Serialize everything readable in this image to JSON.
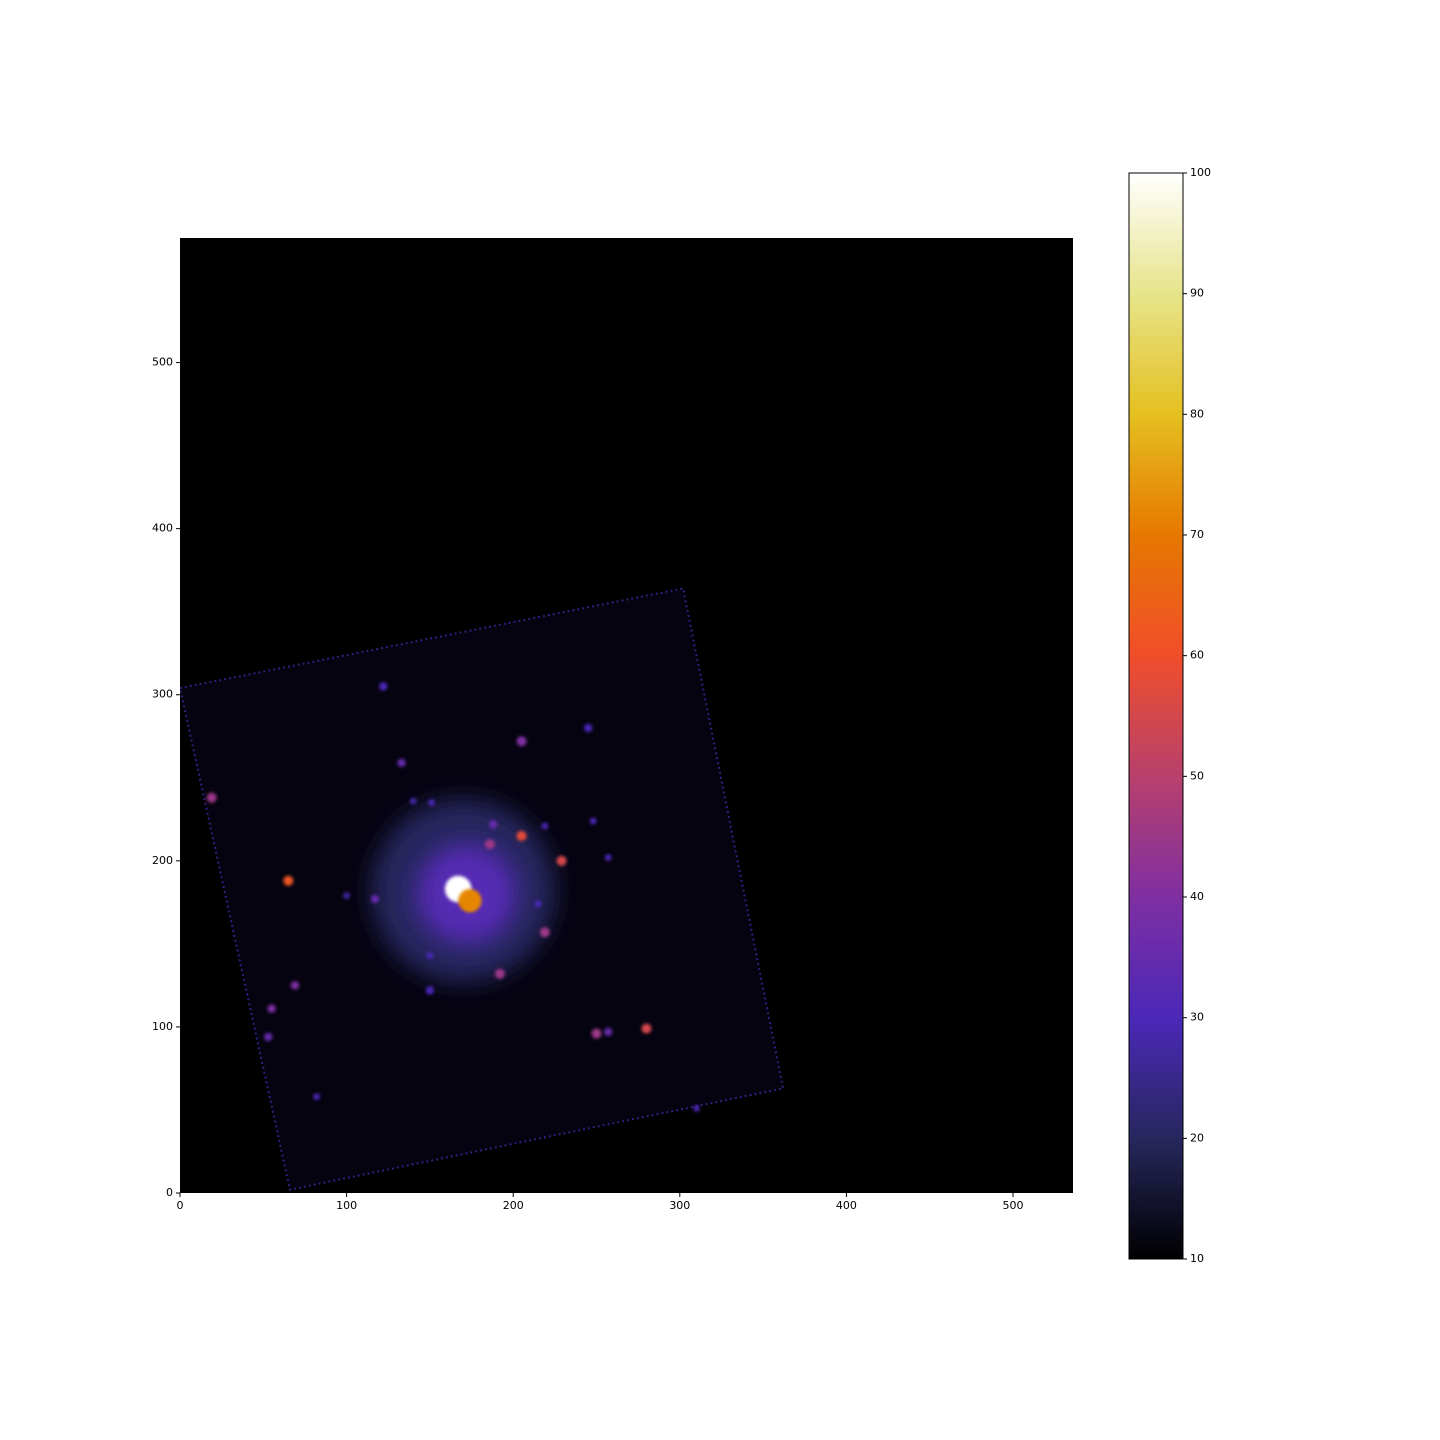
{
  "chart_data": {
    "type": "image",
    "xlim": [
      0,
      536
    ],
    "ylim": [
      0,
      575
    ],
    "xticks": [
      0,
      100,
      200,
      300,
      400,
      500
    ],
    "yticks": [
      0,
      100,
      200,
      300,
      400,
      500
    ],
    "background": "#000000",
    "footprint": {
      "x": [
        0,
        302,
        362,
        66
      ],
      "y": [
        304,
        364,
        63,
        2
      ],
      "color": "#050310",
      "edge_color": "#2c2280"
    },
    "x": [
      170,
      172,
      167,
      174,
      65,
      19,
      133,
      205,
      245,
      122,
      117,
      69,
      55,
      53,
      82,
      150,
      192,
      219,
      215,
      229,
      257,
      205,
      219,
      248,
      151,
      188,
      186,
      250,
      257,
      280,
      150,
      310,
      100,
      140
    ],
    "y": [
      182,
      180,
      183,
      176,
      188,
      238,
      259,
      272,
      280,
      305,
      177,
      125,
      111,
      94,
      58,
      122,
      132,
      157,
      174,
      200,
      202,
      215,
      221,
      224,
      235,
      222,
      210,
      96,
      97,
      99,
      143,
      51,
      179,
      236
    ],
    "values": [
      20,
      32,
      100,
      72,
      62,
      45,
      35,
      40,
      30,
      30,
      35,
      40,
      40,
      35,
      30,
      30,
      45,
      45,
      30,
      55,
      30,
      58,
      30,
      30,
      30,
      35,
      45,
      45,
      35,
      55,
      30,
      30,
      28,
      28
    ],
    "sizes": [
      55,
      30,
      8,
      7,
      3,
      3,
      2.5,
      3,
      2.5,
      2.5,
      2.5,
      2.5,
      2.5,
      2.5,
      2,
      2.5,
      3,
      3,
      2,
      3,
      2,
      3,
      2,
      2,
      2,
      2.5,
      3,
      3,
      2.5,
      3,
      2,
      2,
      2,
      2
    ],
    "colorbar": {
      "lim": [
        10,
        100
      ],
      "ticks": [
        10,
        20,
        30,
        40,
        50,
        60,
        70,
        80,
        90,
        100
      ],
      "colors": [
        "#000000",
        "#27275e",
        "#4b28b8",
        "#7f2fa2",
        "#b8406c",
        "#f04e2a",
        "#e67800",
        "#e5c020",
        "#e6e48a",
        "#ffffff"
      ]
    }
  }
}
